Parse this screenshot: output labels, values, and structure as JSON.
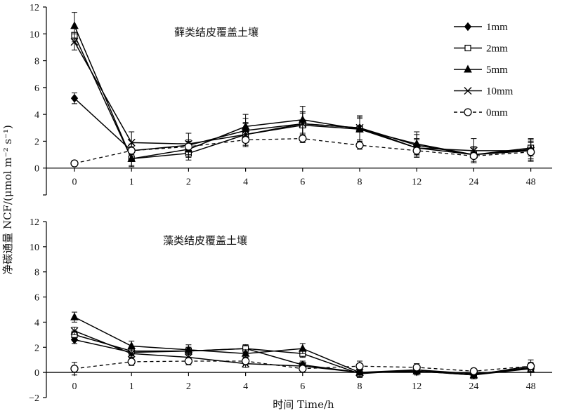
{
  "chart_data": {
    "type": "line",
    "ylabel": "净碳通量 NCF/(μmol m⁻² s⁻¹)",
    "xlabel": "时间 Time/h",
    "categories": [
      "0",
      "1",
      "2",
      "4",
      "6",
      "8",
      "12",
      "24",
      "48"
    ],
    "ylim": [
      -2,
      12
    ],
    "yticks": [
      -2,
      0,
      2,
      4,
      6,
      8,
      10,
      12
    ],
    "legend": {
      "placement": "top-right",
      "entries": [
        "1mm",
        "2mm",
        "5mm",
        "10mm",
        "0mm"
      ]
    },
    "panels": [
      {
        "title": "藓类结皮覆盖土壤",
        "show_bottom_yticks": false,
        "series": [
          {
            "name": "1mm",
            "marker": "diamond",
            "dash": false,
            "values": [
              5.2,
              1.3,
              1.7,
              2.8,
              3.3,
              3.0,
              1.7,
              1.0,
              1.3
            ],
            "errors": [
              0.4,
              0.5,
              0.4,
              0.9,
              0.9,
              0.9,
              0.8,
              0.6,
              0.6
            ]
          },
          {
            "name": "2mm",
            "marker": "square",
            "dash": false,
            "values": [
              9.9,
              0.7,
              1.1,
              2.5,
              3.2,
              2.9,
              1.5,
              1.0,
              1.5
            ],
            "errors": [
              0.5,
              0.6,
              0.5,
              0.8,
              0.9,
              0.8,
              0.6,
              0.5,
              0.5
            ]
          },
          {
            "name": "5mm",
            "marker": "triangle",
            "dash": false,
            "values": [
              10.6,
              0.7,
              1.4,
              3.1,
              3.6,
              2.9,
              1.8,
              1.0,
              1.4
            ],
            "errors": [
              1.0,
              0.5,
              0.6,
              0.9,
              1.0,
              0.9,
              0.9,
              0.6,
              0.8
            ]
          },
          {
            "name": "10mm",
            "marker": "x",
            "dash": false,
            "values": [
              9.4,
              1.9,
              1.8,
              2.5,
              3.3,
              3.0,
              1.5,
              1.3,
              1.3
            ],
            "errors": [
              0.6,
              0.8,
              0.8,
              0.9,
              0.9,
              0.9,
              0.7,
              0.9,
              0.8
            ]
          },
          {
            "name": "0mm",
            "marker": "circle",
            "dash": true,
            "values": [
              0.35,
              1.3,
              1.6,
              2.1,
              2.2,
              1.7,
              1.3,
              0.9,
              1.2
            ],
            "errors": [
              0.2,
              0.3,
              0.4,
              0.4,
              0.3,
              0.3,
              0.3,
              0.2,
              0.3
            ]
          }
        ]
      },
      {
        "title": "藻类结皮覆盖土壤",
        "show_bottom_yticks": true,
        "series": [
          {
            "name": "1mm",
            "marker": "diamond",
            "dash": false,
            "values": [
              2.6,
              1.6,
              1.7,
              1.9,
              0.6,
              0.0,
              0.1,
              -0.2,
              0.4
            ],
            "errors": [
              0.3,
              0.3,
              0.3,
              0.3,
              0.3,
              0.3,
              0.2,
              0.2,
              0.3
            ]
          },
          {
            "name": "2mm",
            "marker": "square",
            "dash": false,
            "values": [
              3.0,
              1.7,
              1.7,
              1.9,
              1.5,
              -0.1,
              0.2,
              -0.1,
              0.3
            ],
            "errors": [
              0.3,
              0.3,
              0.3,
              0.3,
              0.3,
              0.3,
              0.3,
              0.2,
              0.3
            ]
          },
          {
            "name": "5mm",
            "marker": "triangle",
            "dash": false,
            "values": [
              4.4,
              2.1,
              1.8,
              1.5,
              1.9,
              0.0,
              0.1,
              -0.2,
              0.5
            ],
            "errors": [
              0.4,
              0.4,
              0.4,
              0.3,
              0.4,
              0.3,
              0.3,
              0.3,
              0.3
            ]
          },
          {
            "name": "10mm",
            "marker": "x",
            "dash": false,
            "values": [
              3.3,
              1.5,
              1.2,
              0.7,
              0.5,
              0.0,
              0.2,
              -0.2,
              0.3
            ],
            "errors": [
              0.3,
              0.3,
              0.3,
              0.3,
              0.3,
              0.3,
              0.3,
              0.3,
              0.3
            ]
          },
          {
            "name": "0mm",
            "marker": "circle",
            "dash": true,
            "values": [
              0.3,
              0.85,
              0.9,
              0.9,
              0.3,
              0.5,
              0.4,
              0.1,
              0.5
            ],
            "errors": [
              0.5,
              0.3,
              0.3,
              0.3,
              0.3,
              0.4,
              0.3,
              0.2,
              0.5
            ]
          }
        ]
      }
    ]
  }
}
